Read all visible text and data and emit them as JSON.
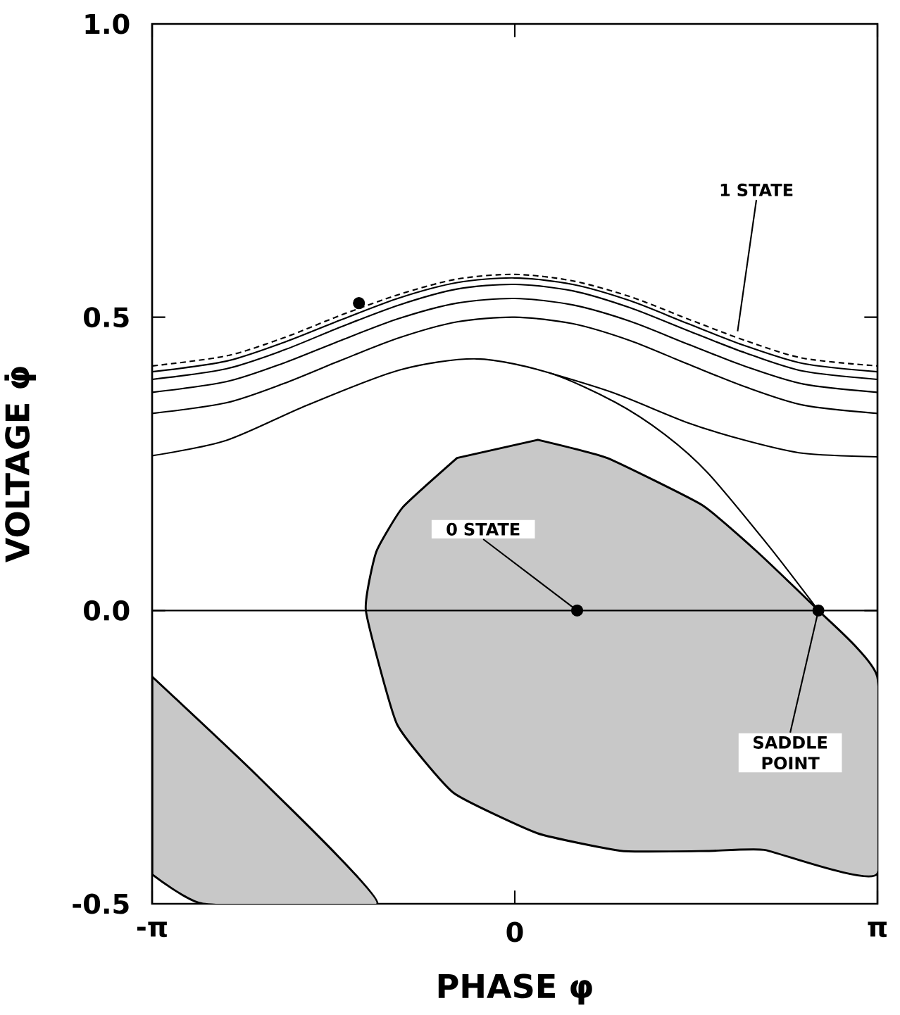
{
  "chart_data": {
    "type": "line",
    "xlabel": "PHASE φ",
    "ylabel": "VOLTAGE φ̇",
    "xlim": [
      -3.1416,
      3.1416
    ],
    "ylim": [
      -0.5,
      1.0
    ],
    "xticks": [
      {
        "value": -3.1416,
        "label": "-π"
      },
      0,
      {
        "value": 3.1416,
        "label": "π"
      }
    ],
    "yticks": [
      {
        "value": -0.5,
        "label": "-0.5"
      },
      {
        "value": 0,
        "label": "0.0"
      },
      {
        "value": 0.5,
        "label": "0.5"
      },
      {
        "value": 1.0,
        "label": "1.0"
      }
    ],
    "ref_lines": [
      {
        "axis": "y",
        "value": 0
      }
    ],
    "annotations": [
      {
        "text": "1 STATE",
        "x": 1.93,
        "y": 0.476
      },
      {
        "text": "0 STATE",
        "x": 0.54,
        "y": 0
      },
      {
        "text": "SADDLE POINT",
        "x": 2.63,
        "y": 0
      }
    ],
    "series": [
      {
        "type": "area",
        "color": "#c8c8c8",
        "x": [
          0.2,
          0.8,
          1.62,
          2.1,
          2.63,
          3.14,
          3.14,
          2.16,
          1.67,
          0.93,
          0.2,
          -0.53,
          -1.02,
          -1.29,
          -1.2,
          -0.97,
          -0.5
        ],
        "values": [
          0.291,
          0.26,
          0.18,
          0.1,
          0,
          -0.113,
          -0.449,
          -0.408,
          -0.41,
          -0.41,
          -0.38,
          -0.311,
          -0.194,
          0,
          0.1,
          0.176,
          0.26
        ]
      },
      {
        "type": "area",
        "color": "#c8c8c8",
        "x": [
          -3.14,
          -2.23,
          -1.19,
          -2.7,
          -3.14
        ],
        "values": [
          -0.113,
          -0.282,
          -0.5,
          -0.5,
          -0.45
        ]
      },
      {
        "color": "#000000",
        "line_style": "dashed",
        "x": [
          -3.14,
          -2.5,
          -2.0,
          -1.5,
          -1.0,
          -0.5,
          0.0,
          0.5,
          1.0,
          1.5,
          2.0,
          2.5,
          3.14
        ],
        "values": [
          0.417,
          0.434,
          0.465,
          0.504,
          0.539,
          0.565,
          0.573,
          0.562,
          0.535,
          0.497,
          0.46,
          0.43,
          0.417
        ]
      },
      {
        "color": "#000000",
        "x": [
          -3.14,
          -2.5,
          -2.0,
          -1.5,
          -1.0,
          -0.5,
          0.0,
          0.5,
          1.0,
          1.5,
          2.0,
          2.5,
          3.14
        ],
        "values": [
          0.407,
          0.425,
          0.457,
          0.496,
          0.533,
          0.559,
          0.567,
          0.556,
          0.528,
          0.489,
          0.451,
          0.421,
          0.407
        ]
      },
      {
        "color": "#000000",
        "x": [
          -3.14,
          -2.5,
          -2.0,
          -1.5,
          -1.0,
          -0.5,
          0.0,
          0.5,
          1.0,
          1.5,
          2.0,
          2.5,
          3.14
        ],
        "values": [
          0.394,
          0.412,
          0.444,
          0.484,
          0.521,
          0.548,
          0.556,
          0.545,
          0.516,
          0.477,
          0.439,
          0.408,
          0.394
        ]
      },
      {
        "color": "#000000",
        "x": [
          -3.14,
          -2.5,
          -2.0,
          -1.5,
          -1.0,
          -0.5,
          0.0,
          0.5,
          1.0,
          1.5,
          2.0,
          2.5,
          3.14
        ],
        "values": [
          0.372,
          0.39,
          0.422,
          0.461,
          0.498,
          0.524,
          0.532,
          0.521,
          0.493,
          0.454,
          0.416,
          0.386,
          0.372
        ]
      },
      {
        "color": "#000000",
        "x": [
          -3.14,
          -2.5,
          -2.0,
          -1.5,
          -1.0,
          -0.5,
          0.0,
          0.5,
          1.0,
          1.5,
          2.0,
          2.5,
          3.14
        ],
        "values": [
          0.336,
          0.354,
          0.387,
          0.427,
          0.465,
          0.492,
          0.5,
          0.489,
          0.46,
          0.42,
          0.381,
          0.35,
          0.336
        ]
      },
      {
        "color": "#000000",
        "x": [
          -3.14,
          -2.5,
          -1.8,
          -1.0,
          -0.33,
          0.3,
          0.87,
          1.3,
          1.67,
          2.2,
          2.63
        ],
        "values": [
          0.264,
          0.29,
          0.35,
          0.41,
          0.429,
          0.405,
          0.355,
          0.3,
          0.235,
          0.11,
          0
        ]
      },
      {
        "color": "#000000",
        "x": [
          0.3,
          0.87,
          1.5,
          2.0,
          2.5,
          3.14
        ],
        "values": [
          0.405,
          0.37,
          0.32,
          0.29,
          0.268,
          0.262
        ]
      },
      {
        "type": "scatter",
        "color": "#000000",
        "x": [
          -1.35,
          0.54,
          2.63
        ],
        "values": [
          0.524,
          0,
          0
        ]
      }
    ]
  }
}
